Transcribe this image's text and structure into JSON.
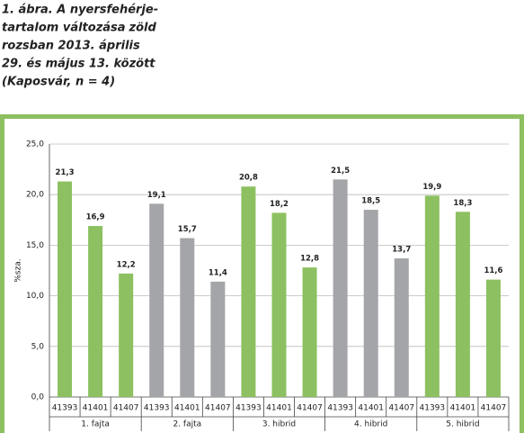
{
  "chart_data": {
    "type": "bar",
    "title": [
      "1. ábra. A nyersfehérje-",
      "tartalom változása",
      "zöld",
      "rozsban 2013. április",
      "29. és május 13. között",
      "(Kaposvár, n = 4)"
    ],
    "ylabel": "%sza.",
    "categories": [
      "41393",
      "41401",
      "41407",
      "41393",
      "41401",
      "41407",
      "41393",
      "41401",
      "41407",
      "41393",
      "41401",
      "41407",
      "41393",
      "41401",
      "41407"
    ],
    "groups": [
      "1. fajta",
      "2. fajta",
      "3. hibrid",
      "4. hibrid",
      "5. hibrid"
    ],
    "values": [
      21.3,
      16.9,
      12.2,
      19.1,
      15.7,
      11.4,
      20.8,
      18.2,
      12.8,
      21.5,
      18.5,
      13.7,
      19.9,
      18.3,
      11.6
    ],
    "value_labels": [
      "21,3",
      "16,9",
      "12,2",
      "19,1",
      "15,7",
      "11,4",
      "20,8",
      "18,2",
      "12,8",
      "21,5",
      "18,5",
      "13,7",
      "19,9",
      "18,3",
      "11,6"
    ],
    "colors": [
      "#8dc060",
      "#8dc060",
      "#8dc060",
      "#a3a5a8",
      "#a3a5a8",
      "#a3a5a8",
      "#8dc060",
      "#8dc060",
      "#8dc060",
      "#a3a5a8",
      "#a3a5a8",
      "#a3a5a8",
      "#8dc060",
      "#8dc060",
      "#8dc060"
    ],
    "ylim": [
      0,
      25
    ],
    "yticks": [
      {
        "value": 0,
        "label": "0,0"
      },
      {
        "value": 5,
        "label": "5,0"
      },
      {
        "value": 10,
        "label": "10,0"
      },
      {
        "value": 15,
        "label": "15,0"
      },
      {
        "value": 20,
        "label": "20,0"
      },
      {
        "value": 25,
        "label": "25,0"
      }
    ],
    "grid": true
  }
}
